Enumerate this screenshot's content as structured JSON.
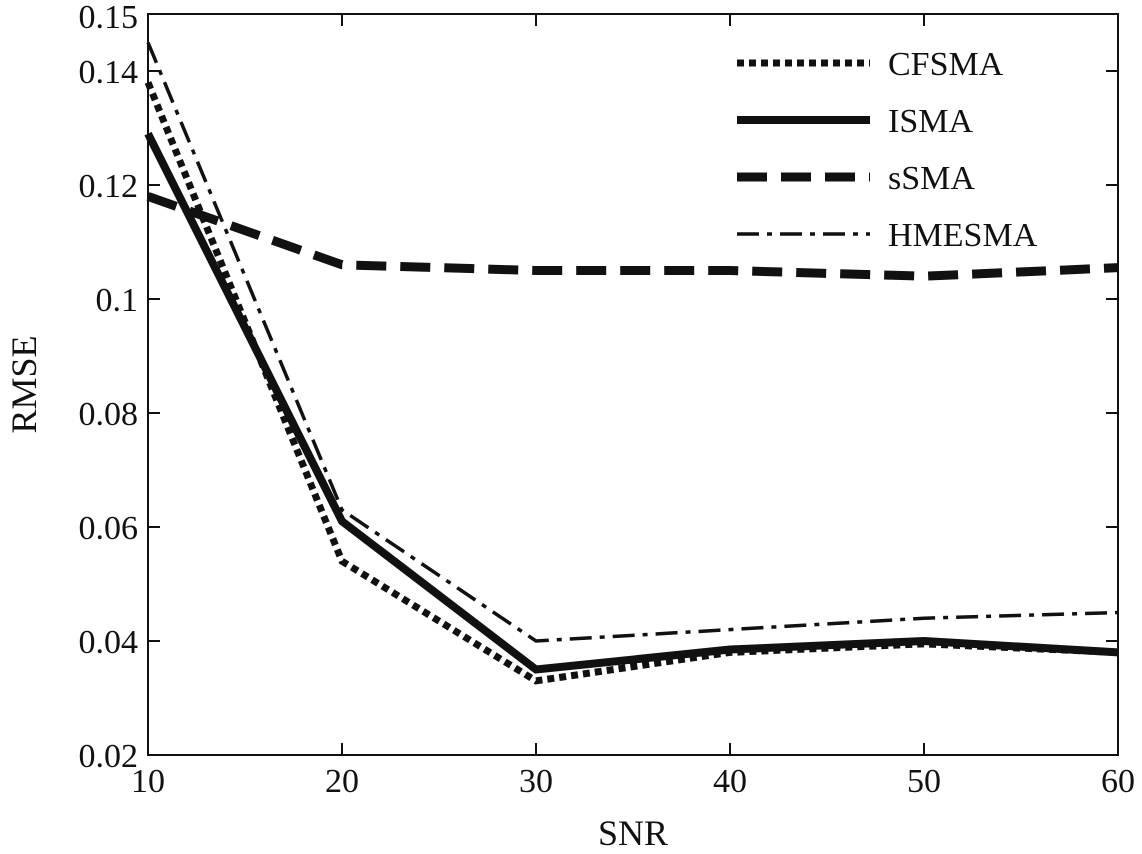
{
  "chart_data": {
    "type": "line",
    "title": "",
    "xlabel": "SNR",
    "ylabel": "RMSE",
    "x": [
      10,
      20,
      30,
      40,
      50,
      60
    ],
    "xlim": [
      10,
      60
    ],
    "ylim": [
      0.02,
      0.15
    ],
    "xticks": [
      "10",
      "20",
      "30",
      "40",
      "50",
      "60"
    ],
    "yticks": [
      "0.02",
      "0.04",
      "0.06",
      "0.08",
      "0.1",
      "0.12",
      "0.14",
      "0.15"
    ],
    "ytick_values": [
      0.02,
      0.04,
      0.06,
      0.08,
      0.1,
      0.12,
      0.14,
      0.15
    ],
    "grid": false,
    "legend_position": "top-right",
    "series": [
      {
        "name": "CFSMA",
        "values": [
          0.138,
          0.054,
          0.033,
          0.038,
          0.0395,
          0.038
        ],
        "style": "dotted",
        "color": "#111111"
      },
      {
        "name": "ISMA",
        "values": [
          0.129,
          0.061,
          0.035,
          0.0385,
          0.04,
          0.038
        ],
        "style": "solid",
        "color": "#111111"
      },
      {
        "name": "sSMA",
        "values": [
          0.118,
          0.106,
          0.105,
          0.105,
          0.104,
          0.1055
        ],
        "style": "dashed",
        "color": "#111111"
      },
      {
        "name": "HMESMA",
        "values": [
          0.145,
          0.063,
          0.04,
          0.042,
          0.044,
          0.045
        ],
        "style": "dashdot",
        "color": "#111111"
      }
    ]
  }
}
